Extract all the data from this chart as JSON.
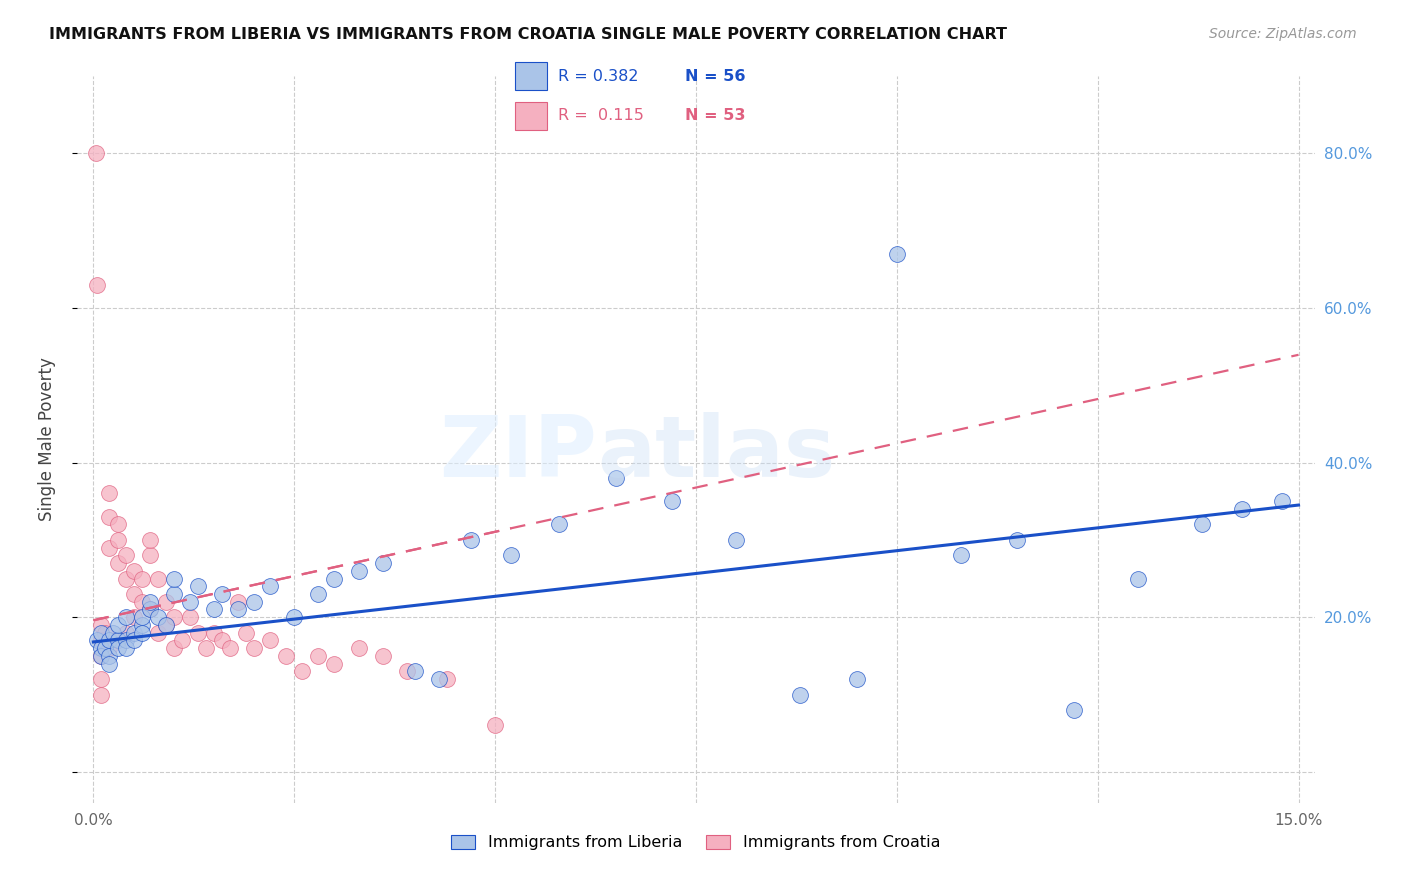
{
  "title": "IMMIGRANTS FROM LIBERIA VS IMMIGRANTS FROM CROATIA SINGLE MALE POVERTY CORRELATION CHART",
  "source": "Source: ZipAtlas.com",
  "ylabel": "Single Male Poverty",
  "xlim": [
    0.0,
    0.15
  ],
  "ylim": [
    0.0,
    0.88
  ],
  "color_liberia": "#aac4e8",
  "color_croatia": "#f5b0c0",
  "line_color_liberia": "#1a50c8",
  "line_color_croatia": "#e06080",
  "right_tick_color": "#5599dd",
  "liberia_x": [
    0.0005,
    0.001,
    0.001,
    0.001,
    0.0015,
    0.002,
    0.002,
    0.002,
    0.0025,
    0.003,
    0.003,
    0.003,
    0.004,
    0.004,
    0.004,
    0.005,
    0.005,
    0.006,
    0.006,
    0.006,
    0.007,
    0.007,
    0.008,
    0.009,
    0.01,
    0.01,
    0.012,
    0.013,
    0.015,
    0.016,
    0.018,
    0.02,
    0.022,
    0.025,
    0.028,
    0.03,
    0.033,
    0.036,
    0.04,
    0.043,
    0.047,
    0.052,
    0.058,
    0.065,
    0.072,
    0.08,
    0.088,
    0.095,
    0.1,
    0.108,
    0.115,
    0.122,
    0.13,
    0.138,
    0.143,
    0.148
  ],
  "liberia_y": [
    0.17,
    0.16,
    0.15,
    0.18,
    0.16,
    0.17,
    0.15,
    0.14,
    0.18,
    0.17,
    0.16,
    0.19,
    0.17,
    0.16,
    0.2,
    0.18,
    0.17,
    0.19,
    0.18,
    0.2,
    0.21,
    0.22,
    0.2,
    0.19,
    0.23,
    0.25,
    0.22,
    0.24,
    0.21,
    0.23,
    0.21,
    0.22,
    0.24,
    0.2,
    0.23,
    0.25,
    0.26,
    0.27,
    0.13,
    0.12,
    0.3,
    0.28,
    0.32,
    0.38,
    0.35,
    0.3,
    0.1,
    0.12,
    0.67,
    0.28,
    0.3,
    0.08,
    0.25,
    0.32,
    0.34,
    0.35
  ],
  "croatia_x": [
    0.0003,
    0.0005,
    0.001,
    0.001,
    0.001,
    0.001,
    0.001,
    0.0015,
    0.002,
    0.002,
    0.002,
    0.002,
    0.003,
    0.003,
    0.003,
    0.003,
    0.004,
    0.004,
    0.004,
    0.005,
    0.005,
    0.005,
    0.006,
    0.006,
    0.007,
    0.007,
    0.007,
    0.008,
    0.008,
    0.009,
    0.009,
    0.01,
    0.01,
    0.011,
    0.012,
    0.013,
    0.014,
    0.015,
    0.016,
    0.017,
    0.018,
    0.019,
    0.02,
    0.022,
    0.024,
    0.026,
    0.028,
    0.03,
    0.033,
    0.036,
    0.039,
    0.044,
    0.05
  ],
  "croatia_y": [
    0.8,
    0.63,
    0.19,
    0.17,
    0.15,
    0.12,
    0.1,
    0.18,
    0.36,
    0.33,
    0.29,
    0.16,
    0.32,
    0.3,
    0.27,
    0.17,
    0.28,
    0.25,
    0.18,
    0.26,
    0.23,
    0.2,
    0.22,
    0.25,
    0.21,
    0.28,
    0.3,
    0.25,
    0.18,
    0.22,
    0.19,
    0.2,
    0.16,
    0.17,
    0.2,
    0.18,
    0.16,
    0.18,
    0.17,
    0.16,
    0.22,
    0.18,
    0.16,
    0.17,
    0.15,
    0.13,
    0.15,
    0.14,
    0.16,
    0.15,
    0.13,
    0.12,
    0.06
  ],
  "lib_line_x": [
    0.0,
    0.15
  ],
  "lib_line_y": [
    0.168,
    0.345
  ],
  "cro_line_x": [
    0.0,
    0.052
  ],
  "cro_line_y": [
    0.196,
    0.315
  ]
}
